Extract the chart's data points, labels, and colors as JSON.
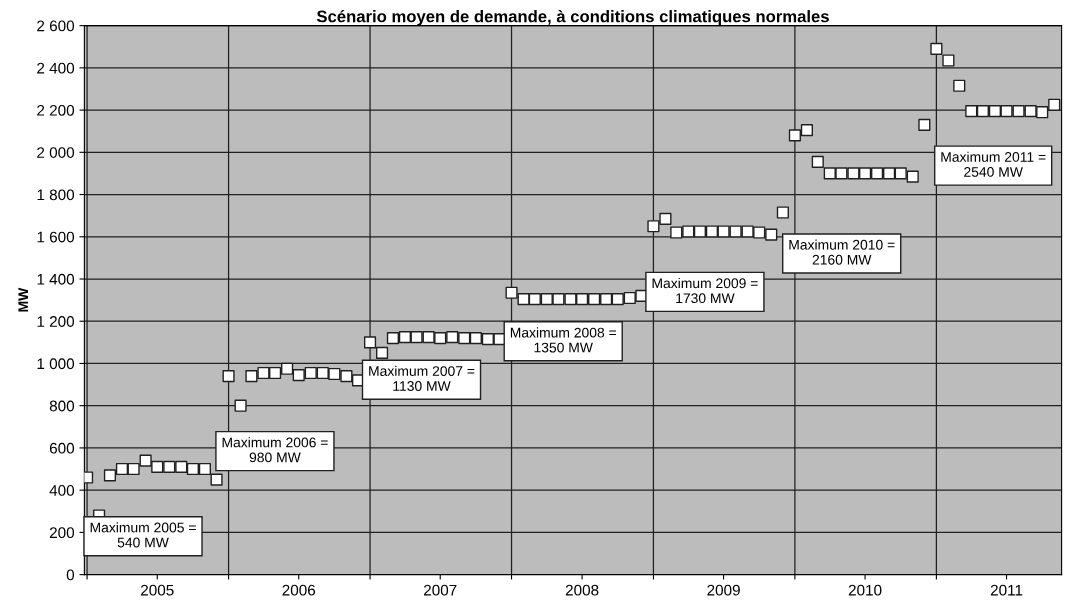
{
  "chart_data": {
    "type": "scatter",
    "title": "Scénario moyen de demande, à conditions climatiques normales",
    "ylabel": "MW",
    "x": [
      "2005-01-01",
      "2005-02-01",
      "2005-03-01",
      "2005-04-01",
      "2005-05-01",
      "2005-06-01",
      "2005-07-01",
      "2005-08-01",
      "2005-09-01",
      "2005-10-01",
      "2005-11-01",
      "2005-12-01",
      "2006-01-01",
      "2006-02-01",
      "2006-03-01",
      "2006-04-01",
      "2006-05-01",
      "2006-06-01",
      "2006-07-01",
      "2006-08-01",
      "2006-09-01",
      "2006-10-01",
      "2006-11-01",
      "2006-12-01",
      "2007-01-01",
      "2007-02-01",
      "2007-03-01",
      "2007-04-01",
      "2007-05-01",
      "2007-06-01",
      "2007-07-01",
      "2007-08-01",
      "2007-09-01",
      "2007-10-01",
      "2007-11-01",
      "2007-12-01",
      "2008-01-01",
      "2008-02-01",
      "2008-03-01",
      "2008-04-01",
      "2008-05-01",
      "2008-06-01",
      "2008-07-01",
      "2008-08-01",
      "2008-09-01",
      "2008-10-01",
      "2008-11-01",
      "2008-12-01",
      "2009-01-01",
      "2009-02-01",
      "2009-03-01",
      "2009-04-01",
      "2009-05-01",
      "2009-06-01",
      "2009-07-01",
      "2009-08-01",
      "2009-09-01",
      "2009-10-01",
      "2009-11-01",
      "2009-12-01",
      "2010-01-01",
      "2010-02-01",
      "2010-03-01",
      "2010-04-01",
      "2010-05-01",
      "2010-06-01",
      "2010-07-01",
      "2010-08-01",
      "2010-09-01",
      "2010-10-01",
      "2010-11-01",
      "2010-12-01",
      "2011-01-01",
      "2011-02-01",
      "2011-03-01",
      "2011-04-01",
      "2011-05-01",
      "2011-06-01",
      "2011-07-01",
      "2011-08-01",
      "2011-09-01",
      "2011-10-01",
      "2011-11-01"
    ],
    "series": [
      {
        "color": "#ffffff",
        "values": [
          460,
          280,
          470,
          500,
          500,
          540,
          510,
          510,
          510,
          500,
          500,
          450,
          940,
          800,
          940,
          955,
          955,
          975,
          945,
          955,
          955,
          950,
          940,
          920,
          1100,
          1050,
          1120,
          1125,
          1125,
          1125,
          1120,
          1125,
          1120,
          1120,
          1115,
          1115,
          1335,
          1305,
          1305,
          1305,
          1305,
          1305,
          1305,
          1305,
          1305,
          1305,
          1310,
          1320,
          1650,
          1685,
          1620,
          1625,
          1625,
          1625,
          1625,
          1625,
          1625,
          1620,
          1610,
          1715,
          2080,
          2105,
          1955,
          1900,
          1900,
          1900,
          1900,
          1900,
          1900,
          1900,
          1885,
          2130,
          2490,
          2435,
          2315,
          2195,
          2195,
          2195,
          2195,
          2195,
          2195,
          2190,
          2225
        ]
      }
    ],
    "marker": "square",
    "grid": true,
    "ylim": [
      0,
      2600
    ],
    "yticks": [
      {
        "value": 0,
        "label": "0"
      },
      {
        "value": 200,
        "label": "200"
      },
      {
        "value": 400,
        "label": "400"
      },
      {
        "value": 600,
        "label": "600"
      },
      {
        "value": 800,
        "label": "800"
      },
      {
        "value": 1000,
        "label": "1 000"
      },
      {
        "value": 1200,
        "label": "1 200"
      },
      {
        "value": 1400,
        "label": "1 400"
      },
      {
        "value": 1600,
        "label": "1 600"
      },
      {
        "value": 1800,
        "label": "1 800"
      },
      {
        "value": 2000,
        "label": "2 000"
      },
      {
        "value": 2200,
        "label": "2 200"
      },
      {
        "value": 2400,
        "label": "2 400"
      },
      {
        "value": 2600,
        "label": "2 600"
      }
    ],
    "xlim": [
      "2004-12-25",
      "2011-11-20"
    ],
    "xticks": [
      {
        "value": "2005-01-01",
        "label": null
      },
      {
        "value": "2005-07-01",
        "label": "2005"
      },
      {
        "value": "2006-01-01",
        "label": null
      },
      {
        "value": "2006-07-01",
        "label": "2006"
      },
      {
        "value": "2007-01-01",
        "label": null
      },
      {
        "value": "2007-07-01",
        "label": "2007"
      },
      {
        "value": "2008-01-01",
        "label": null
      },
      {
        "value": "2008-07-01",
        "label": "2008"
      },
      {
        "value": "2009-01-01",
        "label": null
      },
      {
        "value": "2009-07-01",
        "label": "2009"
      },
      {
        "value": "2010-01-01",
        "label": null
      },
      {
        "value": "2010-07-01",
        "label": "2010"
      },
      {
        "value": "2011-01-01",
        "label": null
      },
      {
        "value": "2011-07-01",
        "label": "2011"
      }
    ],
    "annotations": [
      "Maximum 2005 =\n540 MW",
      "Maximum 2006 =\n980 MW",
      "Maximum 2007 =\n1130 MW",
      "Maximum 2008 =\n1350 MW",
      "Maximum 2009 =\n1730 MW",
      "Maximum 2010 =\n2160 MW",
      "Maximum 2011 =\n2540 MW"
    ]
  }
}
